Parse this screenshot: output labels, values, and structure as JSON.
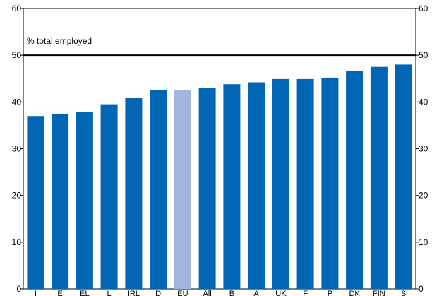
{
  "chart_data": {
    "type": "bar",
    "annotation": "% total employed",
    "categories": [
      "I",
      "E",
      "EL",
      "L",
      "IRL",
      "D",
      "EU",
      "All",
      "B",
      "A",
      "UK",
      "F",
      "P",
      "DK",
      "FIN",
      "S"
    ],
    "values": [
      37.0,
      37.5,
      37.8,
      39.5,
      40.8,
      42.5,
      42.6,
      43.0,
      43.8,
      44.2,
      44.9,
      44.9,
      45.2,
      46.7,
      47.5,
      48.0
    ],
    "highlight_category": "EU",
    "reference_line": 50,
    "ylim": [
      0,
      60
    ],
    "yticks": [
      0,
      10,
      20,
      30,
      40,
      50,
      60
    ],
    "y_axis_both_sides": true,
    "grid": false,
    "colors": {
      "bar": "#0066b3",
      "highlight": "#a4b4dc",
      "axis": "#000000",
      "reference_line": "#000000"
    }
  }
}
